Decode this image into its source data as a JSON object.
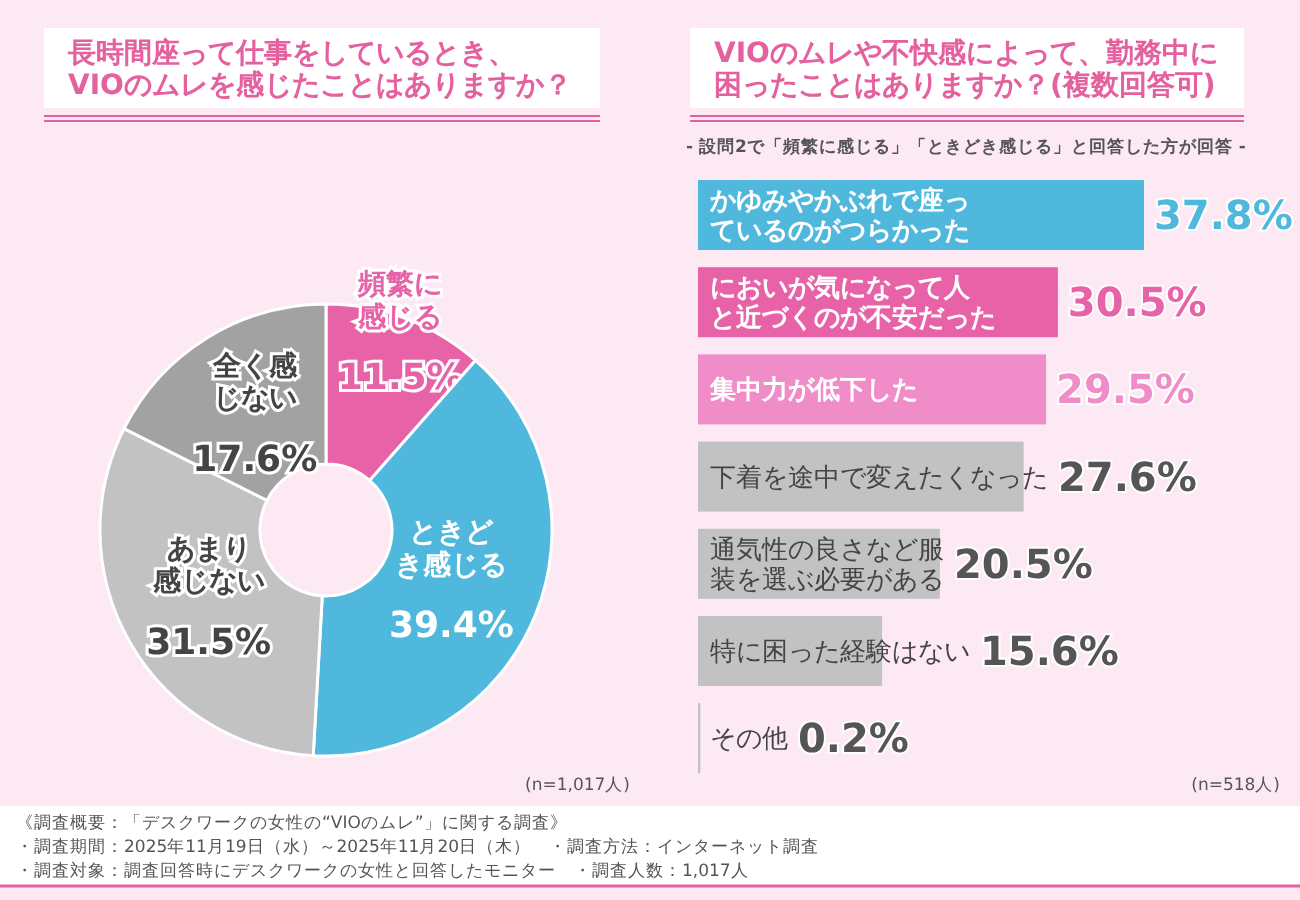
{
  "chart_data": [
    {
      "type": "donut",
      "title": "長時間座って仕事をしているとき、VIOのムレを感じたことはありますか？",
      "categories": [
        "頻繁に感じる",
        "ときどき感じる",
        "あまり感じない",
        "全く感じない"
      ],
      "values": [
        11.5,
        39.4,
        31.5,
        17.6
      ],
      "colors": [
        "#e862a8",
        "#4fb8dc",
        "#c2c2c2",
        "#a2a2a2"
      ],
      "value_labels": [
        "11.5%",
        "39.4%",
        "31.5%",
        "17.6%"
      ],
      "annotations": [
        "(n=1,017人)",
        "《調査概要：「デスクワークの女性の“VIOのムレ”」に関する調査》",
        "・調査期間：2025年11月19日（水）～2025年11月20日（木）　・調査方法：インターネット調査",
        "・調査対象：調査回答時にデスクワークの女性と回答したモニター　・調査人数：1,017人"
      ]
    },
    {
      "type": "bar",
      "orientation": "horizontal",
      "title": "VIOのムレや不快感によって、勤務中に困ったことはありますか？(複数回答可)",
      "subtitle": "- 設問2で「頻繁に感じる」「ときどき感じる」と回答した方が回答 -",
      "categories": [
        "かゆみやかぶれで座っているのがつらかった",
        "においが気になって人と近づくのが不安だった",
        "集中力が低下した",
        "下着を途中で変えたくなった",
        "通気性の良さなど服装を選ぶ必要がある",
        "特に困った経験はない",
        "その他"
      ],
      "values": [
        37.8,
        30.5,
        29.5,
        27.6,
        20.5,
        15.6,
        0.2
      ],
      "colors": [
        "#4fb8dc",
        "#e862a8",
        "#f08cc8",
        "#c2c2c2",
        "#c2c2c2",
        "#c2c2c2",
        "#c2c2c2"
      ],
      "value_labels": [
        "37.8%",
        "30.5%",
        "29.5%",
        "27.6%",
        "20.5%",
        "15.6%",
        "0.2%"
      ],
      "annotations": [
        "(n=518人)"
      ]
    }
  ]
}
